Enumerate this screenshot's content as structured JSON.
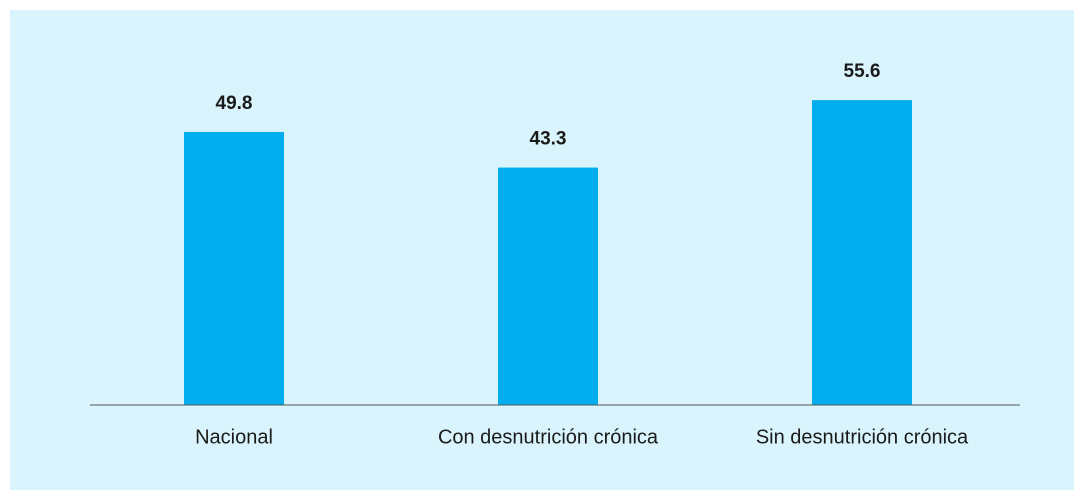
{
  "chart_data": {
    "type": "bar",
    "categories": [
      "Nacional",
      "Con desnutrición crónica",
      "Sin desnutrición crónica"
    ],
    "values": [
      49.8,
      43.3,
      55.6
    ],
    "color": "#00aeef",
    "ylim": [
      0,
      60
    ]
  }
}
